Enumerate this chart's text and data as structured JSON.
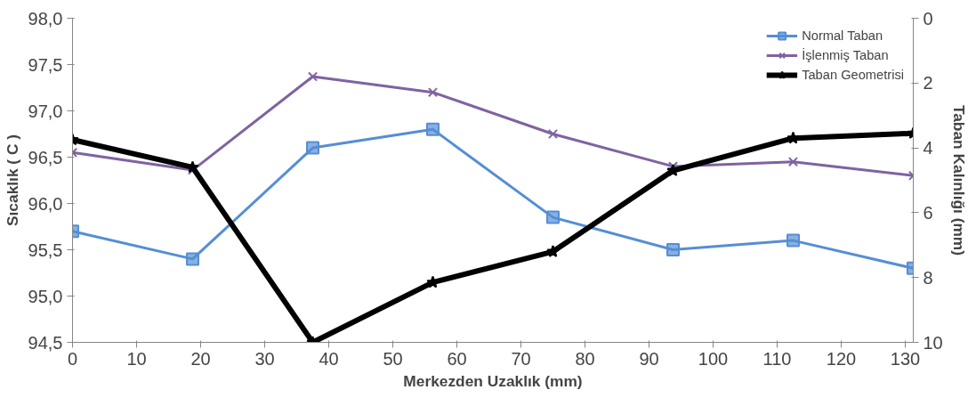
{
  "chart_data": {
    "type": "line",
    "xlabel": "Merkezden Uzaklık (mm)",
    "ylabel": "Sıcaklık ( C )",
    "y2label": "Taban Kalınlığı (mm)",
    "x": [
      0,
      18.75,
      37.5,
      56.25,
      75,
      93.75,
      112.5,
      131.25
    ],
    "xlim": [
      0,
      131.25
    ],
    "xticks": [
      0,
      10,
      20,
      30,
      40,
      50,
      60,
      70,
      80,
      90,
      100,
      110,
      120,
      130
    ],
    "ylim": [
      94.5,
      98.0
    ],
    "yticks": [
      {
        "value": 94.5,
        "label": "94,5"
      },
      {
        "value": 95.0,
        "label": "95,0"
      },
      {
        "value": 95.5,
        "label": "95,5"
      },
      {
        "value": 96.0,
        "label": "96,0"
      },
      {
        "value": 96.5,
        "label": "96,5"
      },
      {
        "value": 97.0,
        "label": "97,0"
      },
      {
        "value": 97.5,
        "label": "97,5"
      },
      {
        "value": 98.0,
        "label": "98,0"
      }
    ],
    "y2lim": [
      10,
      0
    ],
    "y2ticks": [
      0,
      2,
      4,
      6,
      8,
      10
    ],
    "grid": false,
    "legend": "top right",
    "series": [
      {
        "name": "Normal Taban",
        "color": "#558ed5",
        "marker": "square",
        "values": [
          95.7,
          95.4,
          96.6,
          96.8,
          95.85,
          95.5,
          95.6,
          95.3
        ]
      },
      {
        "name": "İşlenmiş Taban",
        "color": "#7f63a1",
        "marker": "cross",
        "values": [
          96.55,
          96.36,
          97.37,
          97.2,
          96.75,
          96.4,
          96.45,
          96.3
        ]
      },
      {
        "name": "Taban Geometrisi",
        "color": "#000000",
        "marker": "star",
        "axis": "y2",
        "values": [
          3.75,
          4.6,
          10,
          8.15,
          7.2,
          4.7,
          3.7,
          3.55
        ]
      }
    ]
  }
}
